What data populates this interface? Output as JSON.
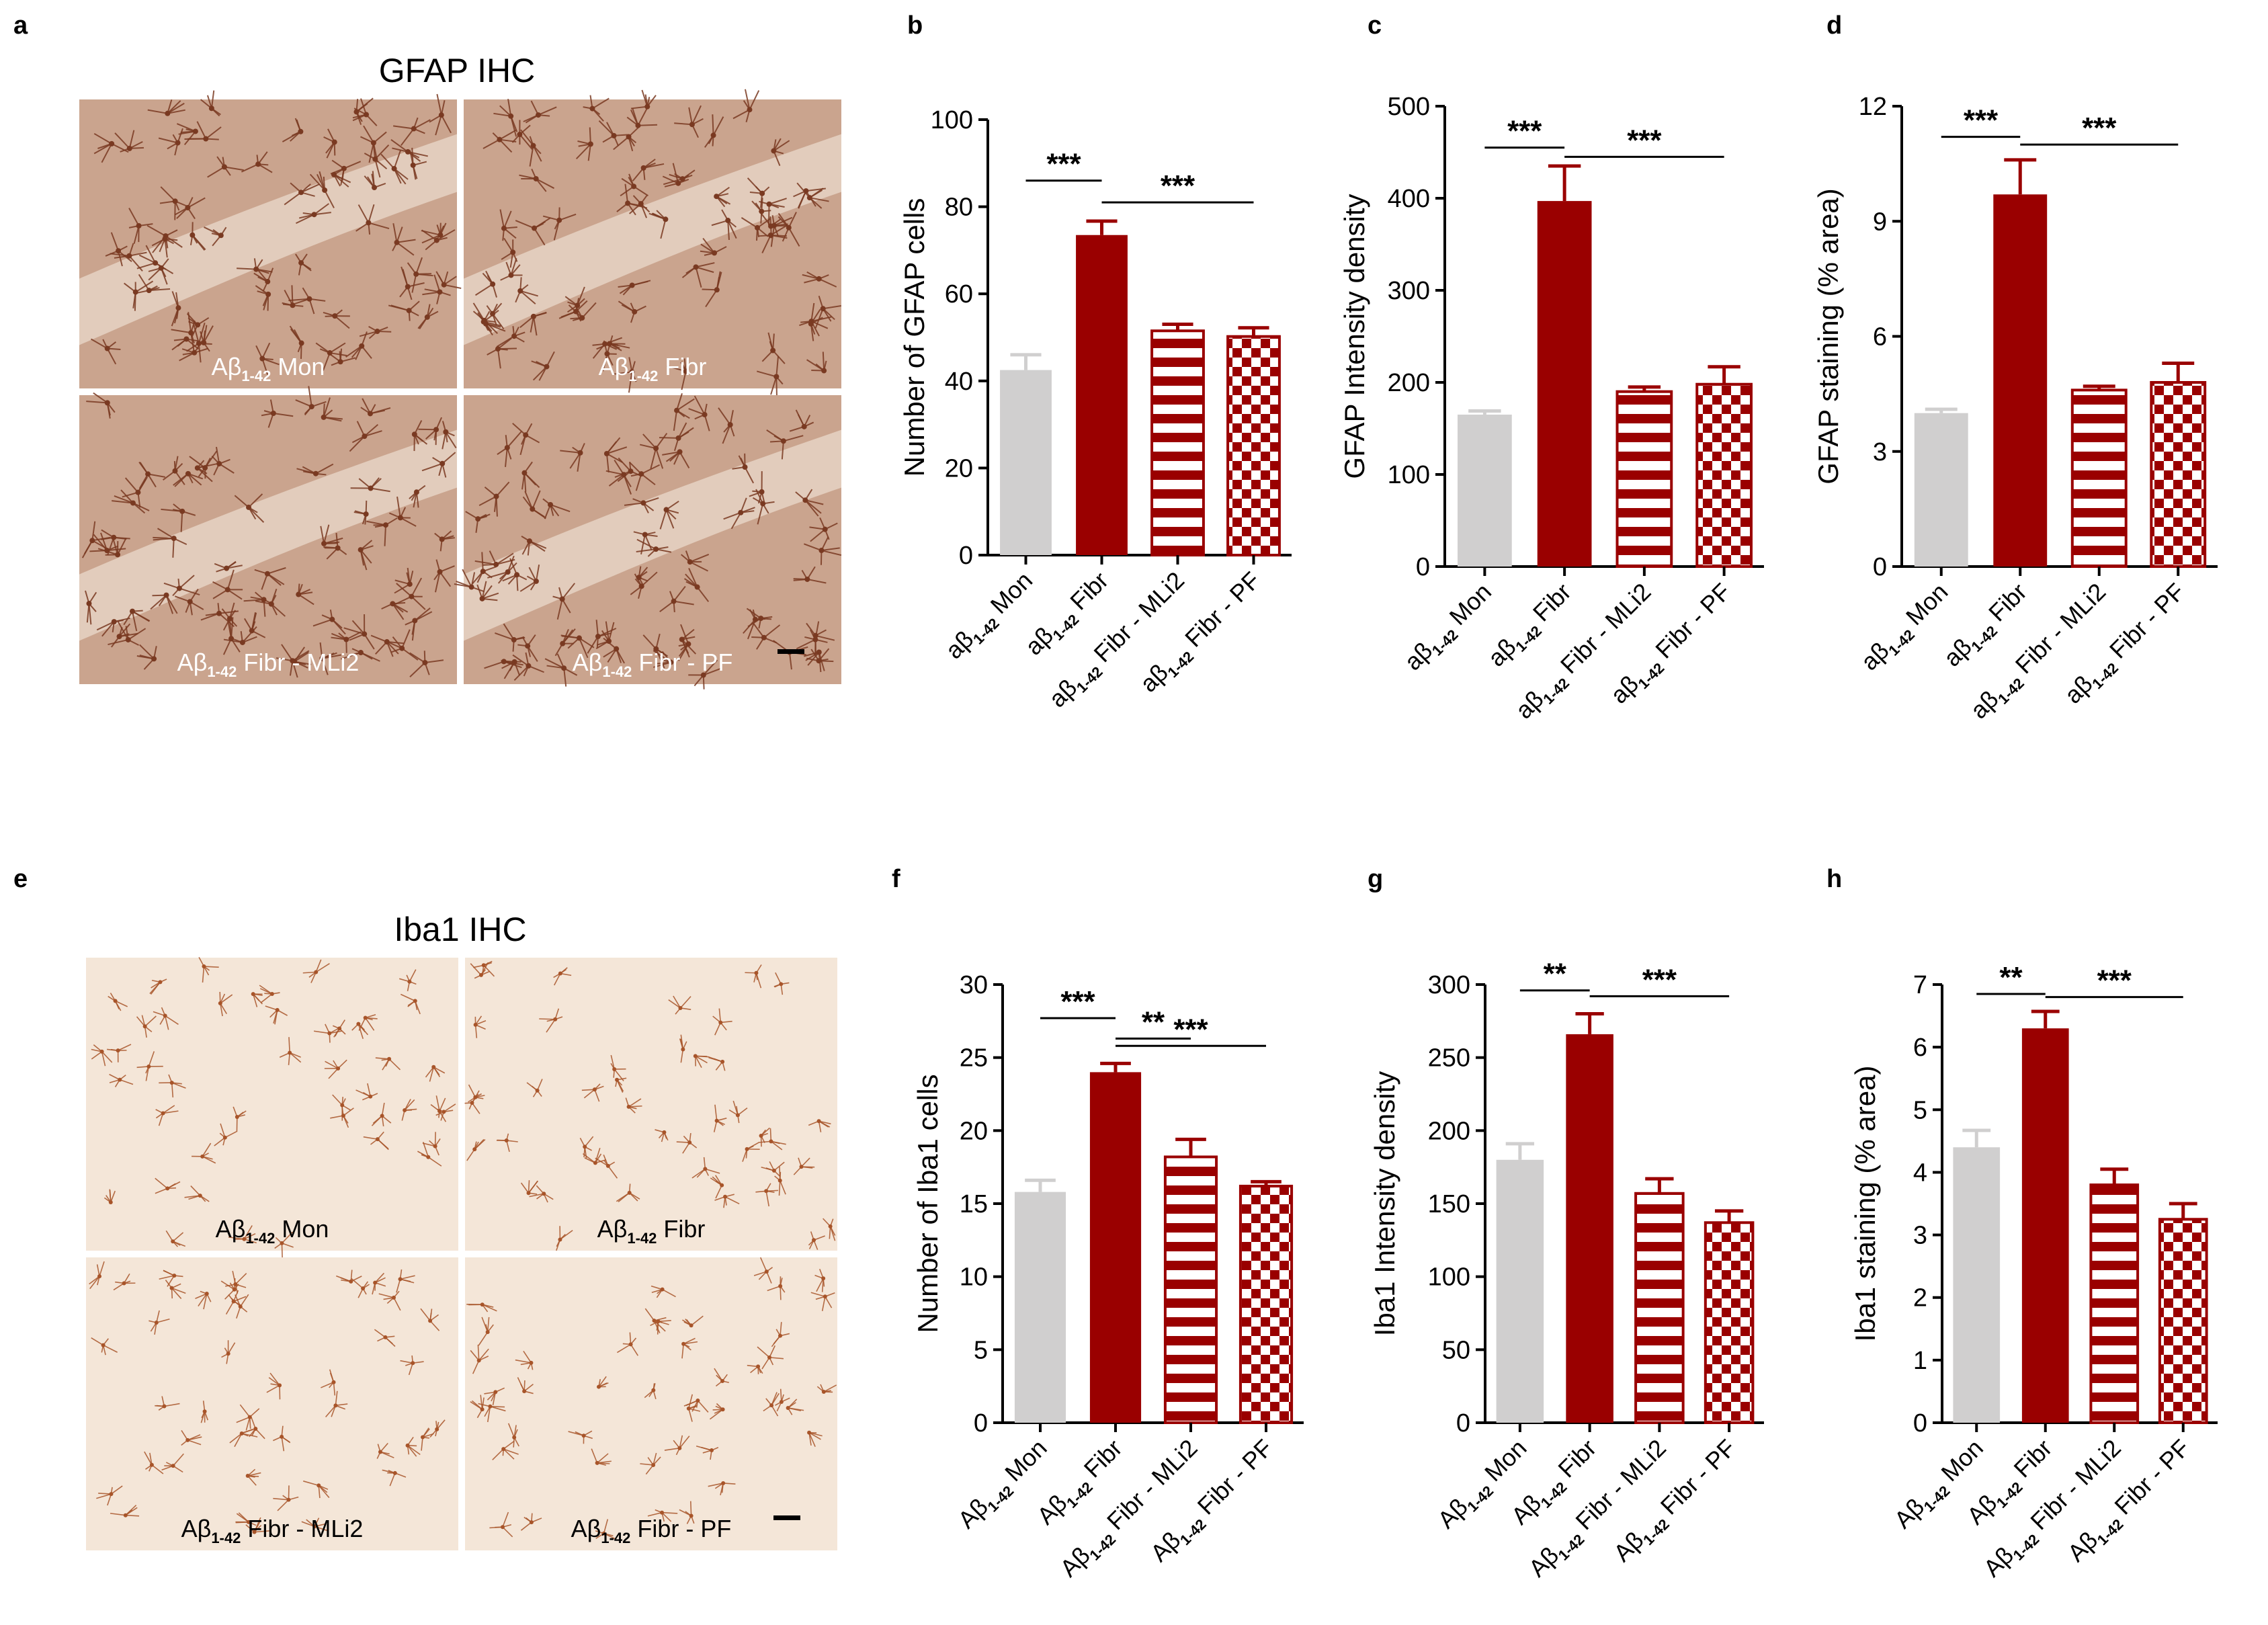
{
  "figure": {
    "colors": {
      "mon": "#d0cfcf",
      "fibr": "#9a0000",
      "axis": "#000000",
      "gfap_stain": "#7a3a22",
      "gfap_bg": "#caa48e",
      "iba_stain": "#a8552a",
      "iba_bg": "#f4e6d8"
    },
    "image_panels": [
      {
        "letter": "a",
        "title": "GFAP IHC",
        "stain": "gfap",
        "label_color": "#ffffff",
        "tiles": [
          {
            "label_main": "Aβ",
            "label_sub": "1-42",
            "label_rest": " Mon"
          },
          {
            "label_main": "Aβ",
            "label_sub": "1-42",
            "label_rest": " Fibr"
          },
          {
            "label_main": "Aβ",
            "label_sub": "1-42",
            "label_rest": " Fibr - MLi2"
          },
          {
            "label_main": "Aβ",
            "label_sub": "1-42",
            "label_rest": " Fibr - PF"
          }
        ]
      },
      {
        "letter": "e",
        "title": "Iba1 IHC",
        "stain": "iba",
        "label_color": "#000000",
        "tiles": [
          {
            "label_main": "Aβ",
            "label_sub": "1-42",
            "label_rest": " Mon"
          },
          {
            "label_main": "Aβ",
            "label_sub": "1-42",
            "label_rest": " Fibr"
          },
          {
            "label_main": "Aβ",
            "label_sub": "1-42",
            "label_rest": " Fibr - MLi2"
          },
          {
            "label_main": "Aβ",
            "label_sub": "1-42",
            "label_rest": " Fibr - PF"
          }
        ]
      }
    ]
  },
  "chart_data": [
    {
      "letter": "b",
      "type": "bar",
      "ylabel": "Number of GFAP cells",
      "ylim": [
        0,
        100
      ],
      "yticks": [
        0,
        20,
        40,
        60,
        80,
        100
      ],
      "categories": [
        {
          "pre": "aβ",
          "sub": "1-42",
          "post": " Mon"
        },
        {
          "pre": "aβ",
          "sub": "1-42",
          "post": " Fibr"
        },
        {
          "pre": "aβ",
          "sub": "1-42",
          "post": " Fibr - MLi2"
        },
        {
          "pre": "aβ",
          "sub": "1-42",
          "post": " Fibr - PF"
        }
      ],
      "values": [
        42.5,
        73.5,
        51.5,
        50.2
      ],
      "errors": [
        3.5,
        3.2,
        1.5,
        2.0
      ],
      "significance": [
        {
          "from": 0,
          "to": 1,
          "level": 86,
          "label": "***"
        },
        {
          "from": 1,
          "to": 3,
          "level": 81,
          "label": "***"
        }
      ]
    },
    {
      "letter": "c",
      "type": "bar",
      "ylabel": "GFAP Intensity density",
      "ylim": [
        0,
        500
      ],
      "yticks": [
        0,
        100,
        200,
        300,
        400,
        500
      ],
      "categories": [
        {
          "pre": "aβ",
          "sub": "1-42",
          "post": " Mon"
        },
        {
          "pre": "aβ",
          "sub": "1-42",
          "post": " Fibr"
        },
        {
          "pre": "aβ",
          "sub": "1-42",
          "post": " Fibr - MLi2"
        },
        {
          "pre": "aβ",
          "sub": "1-42",
          "post": " Fibr - PF"
        }
      ],
      "values": [
        165,
        397,
        190,
        198
      ],
      "errors": [
        4,
        38,
        5,
        19
      ],
      "significance": [
        {
          "from": 0,
          "to": 1,
          "level": 455,
          "label": "***"
        },
        {
          "from": 1,
          "to": 3,
          "level": 445,
          "label": "***"
        }
      ]
    },
    {
      "letter": "d",
      "type": "bar",
      "ylabel": "GFAP staining (% area)",
      "ylim": [
        0,
        12
      ],
      "yticks": [
        0,
        3,
        6,
        9,
        12
      ],
      "categories": [
        {
          "pre": "aβ",
          "sub": "1-42",
          "post": " Mon"
        },
        {
          "pre": "aβ",
          "sub": "1-42",
          "post": " Fibr"
        },
        {
          "pre": "aβ",
          "sub": "1-42",
          "post": " Fibr - MLi2"
        },
        {
          "pre": "aβ",
          "sub": "1-42",
          "post": " Fibr - PF"
        }
      ],
      "values": [
        4.0,
        9.7,
        4.6,
        4.8
      ],
      "errors": [
        0.1,
        0.9,
        0.1,
        0.5
      ],
      "significance": [
        {
          "from": 0,
          "to": 1,
          "level": 11.2,
          "label": "***"
        },
        {
          "from": 1,
          "to": 3,
          "level": 11.0,
          "label": "***"
        }
      ]
    },
    {
      "letter": "f",
      "type": "bar",
      "ylabel": "Number of Iba1 cells",
      "ylim": [
        0,
        30
      ],
      "yticks": [
        0,
        5,
        10,
        15,
        20,
        25,
        30
      ],
      "categories": [
        {
          "pre": "Aβ",
          "sub": "1-42",
          "post": " Mon"
        },
        {
          "pre": "Aβ",
          "sub": "1-42",
          "post": " Fibr"
        },
        {
          "pre": "Aβ",
          "sub": "1-42",
          "post": " Fibr - MLi2"
        },
        {
          "pre": "Aβ",
          "sub": "1-42",
          "post": " Fibr - PF"
        }
      ],
      "values": [
        15.8,
        24.0,
        18.2,
        16.2
      ],
      "errors": [
        0.8,
        0.6,
        1.2,
        0.3
      ],
      "significance": [
        {
          "from": 0,
          "to": 1,
          "level": 27.7,
          "label": "***"
        },
        {
          "from": 1,
          "to": 2,
          "level": 26.3,
          "label": "**"
        },
        {
          "from": 1,
          "to": 3,
          "level": 25.8,
          "label": "***"
        }
      ]
    },
    {
      "letter": "g",
      "type": "bar",
      "ylabel": "Iba1 Intensity density",
      "ylim": [
        0,
        300
      ],
      "yticks": [
        0,
        50,
        100,
        150,
        200,
        250,
        300
      ],
      "categories": [
        {
          "pre": "Aβ",
          "sub": "1-42",
          "post": " Mon"
        },
        {
          "pre": "Aβ",
          "sub": "1-42",
          "post": " Fibr"
        },
        {
          "pre": "Aβ",
          "sub": "1-42",
          "post": " Fibr - MLi2"
        },
        {
          "pre": "Aβ",
          "sub": "1-42",
          "post": " Fibr - PF"
        }
      ],
      "values": [
        180,
        266,
        157,
        137
      ],
      "errors": [
        11,
        14,
        10,
        8
      ],
      "significance": [
        {
          "from": 0,
          "to": 1,
          "level": 296,
          "label": "**"
        },
        {
          "from": 1,
          "to": 3,
          "level": 292,
          "label": "***"
        }
      ]
    },
    {
      "letter": "h",
      "type": "bar",
      "ylabel": "Iba1 staining (% area)",
      "ylim": [
        0,
        7
      ],
      "yticks": [
        0,
        1,
        2,
        3,
        4,
        5,
        6,
        7
      ],
      "categories": [
        {
          "pre": "Aβ",
          "sub": "1-42",
          "post": " Mon"
        },
        {
          "pre": "Aβ",
          "sub": "1-42",
          "post": " Fibr"
        },
        {
          "pre": "Aβ",
          "sub": "1-42",
          "post": " Fibr - MLi2"
        },
        {
          "pre": "Aβ",
          "sub": "1-42",
          "post": " Fibr - PF"
        }
      ],
      "values": [
        4.4,
        6.3,
        3.8,
        3.25
      ],
      "errors": [
        0.27,
        0.27,
        0.25,
        0.25
      ],
      "significance": [
        {
          "from": 0,
          "to": 1,
          "level": 6.85,
          "label": "**"
        },
        {
          "from": 1,
          "to": 3,
          "level": 6.8,
          "label": "***"
        }
      ]
    }
  ]
}
